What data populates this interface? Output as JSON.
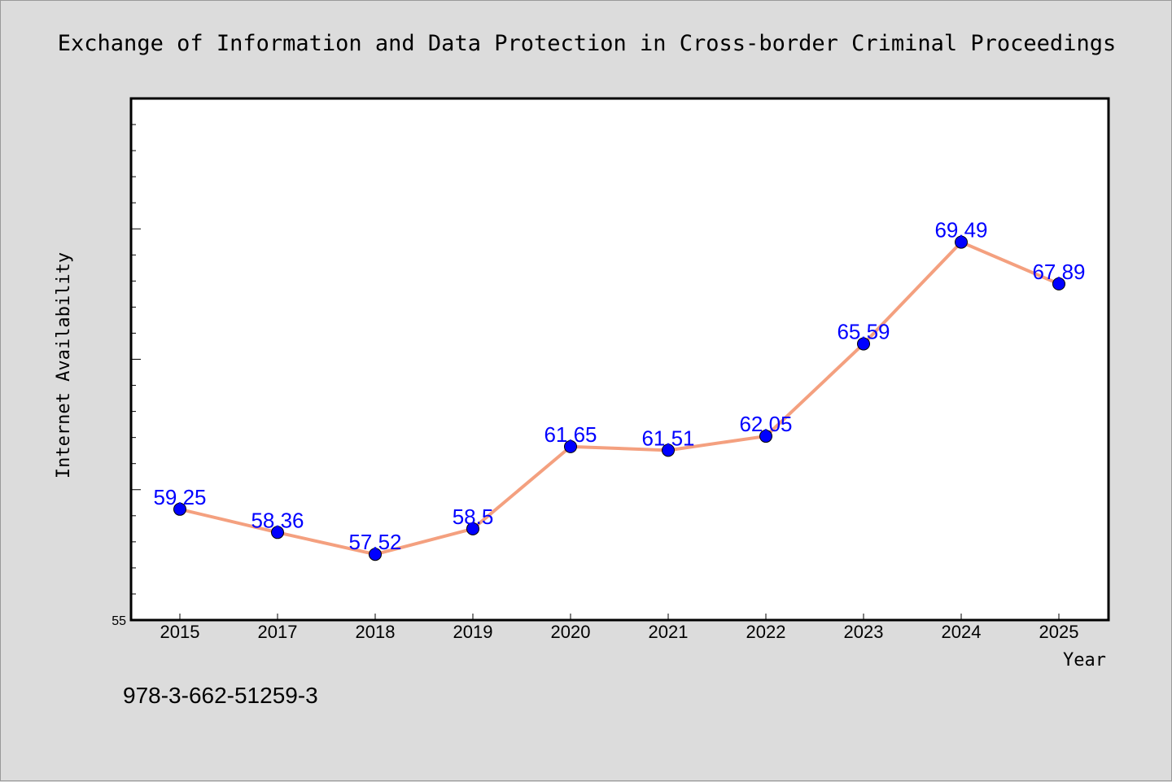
{
  "footnote": "978-3-662-51259-3",
  "chart_data": {
    "type": "line",
    "title": "Exchange of Information and Data Protection in Cross-border Criminal Proceedings",
    "xlabel": "Year",
    "ylabel": "Internet Availability",
    "categories": [
      "2015",
      "2017",
      "2018",
      "2019",
      "2020",
      "2021",
      "2022",
      "2023",
      "2024",
      "2025"
    ],
    "series": [
      {
        "values": [
          59.25,
          58.36,
          57.52,
          58.5,
          61.65,
          61.51,
          62.05,
          65.59,
          69.49,
          67.89
        ],
        "labels": [
          "59.25",
          "58.36",
          "57.52",
          "58.5",
          "61.65",
          "61.51",
          "62.05",
          "65.59",
          "69.49",
          "67.89"
        ],
        "line_color": "#f4a07f",
        "marker_color": "#0000ff"
      }
    ],
    "ylim": [
      55,
      75
    ],
    "yticks_labeled": [
      "55"
    ],
    "grid": false,
    "legend": "none",
    "plot_background": "#ffffff",
    "figure_background": "#dcdcdc"
  }
}
